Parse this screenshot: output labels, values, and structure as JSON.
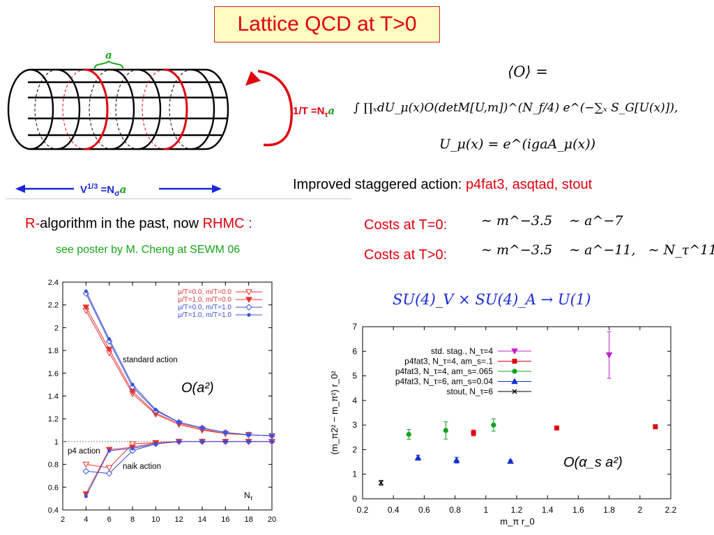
{
  "title": "Lattice QCD at T>0",
  "lattice_figure": {
    "label_a": "a",
    "temp_label": "1/T =N",
    "temp_sub": "τ",
    "temp_a": "a",
    "volume_label": "V",
    "volume_sup": "1/3",
    "volume_eq": "=N",
    "volume_sub": "σ",
    "volume_a": "a"
  },
  "formula": {
    "line1": "⟨O⟩ =",
    "line2": "∫ ∏ₓdU_μ(x)O(detM[U,m])^(N_f/4) e^(−∑ₓ S_G[U(x)]),",
    "line3": "U_μ(x) = e^(igaA_μ(x))"
  },
  "improved_action": {
    "prefix": "Improved staggered action:",
    "actions": "p4fat3, asqtad, stout"
  },
  "algorithm": {
    "r": "R-",
    "text": "algorithm  in the past, now",
    "rhmc": "RHMC :"
  },
  "poster": "see poster by M. Cheng at SEWM 06",
  "costs": {
    "t0_label": "Costs at T=0:",
    "t0_formula": "∼ m^−3.5    ∼ a^−7",
    "tpos_label": "Costs at T>0:",
    "tpos_formula": "∼ m^−3.5    ∼ a^−11,   ∼ N_τ^11"
  },
  "symmetry": "SU(4)_V × SU(4)_A → U(1)",
  "colors": {
    "red": "#e0000e",
    "blue": "#1a27d8",
    "green": "#16a316",
    "magenta": "#c020d0",
    "title_bg": "#fefcc0"
  },
  "chart_data": [
    {
      "type": "line",
      "xlim": [
        2,
        20
      ],
      "ylim": [
        0.4,
        2.4
      ],
      "xticks": [
        2,
        4,
        6,
        8,
        10,
        12,
        14,
        16,
        18,
        20
      ],
      "yticks": [
        0.4,
        0.6,
        0.8,
        1,
        1.2,
        1.4,
        1.6,
        1.8,
        2,
        2.2,
        2.4
      ],
      "xlabel": "N",
      "xlabel_sub": "τ",
      "reference_line": 1,
      "annotations": {
        "standard": "standard action",
        "p4": "p4 action",
        "naik": "naik action",
        "order": "O(a²)"
      },
      "legend": "top-right",
      "x": [
        4,
        6,
        8,
        10,
        12,
        14,
        16,
        18,
        20
      ],
      "series": [
        {
          "name": "μ/T=0.0, m/T=0.0",
          "color": "#e63232",
          "marker": "tri-open",
          "group": "standard",
          "values": [
            2.15,
            1.78,
            1.42,
            1.24,
            1.15,
            1.1,
            1.07,
            1.06,
            1.05
          ]
        },
        {
          "name": "μ/T=1.0, m/T=0.0",
          "color": "#e63232",
          "marker": "tri-filled",
          "group": "standard",
          "values": [
            2.18,
            1.81,
            1.44,
            1.25,
            1.16,
            1.11,
            1.07,
            1.06,
            1.05
          ]
        },
        {
          "name": "μ/T=0.0, m/T=1.0",
          "color": "#3a4fd8",
          "marker": "diamond-open",
          "group": "standard",
          "values": [
            2.3,
            1.88,
            1.48,
            1.27,
            1.17,
            1.12,
            1.08,
            1.06,
            1.05
          ]
        },
        {
          "name": "μ/T=1.0, m/T=1.0",
          "color": "#3a4fd8",
          "marker": "dot",
          "group": "standard",
          "values": [
            2.32,
            1.9,
            1.5,
            1.28,
            1.17,
            1.12,
            1.08,
            1.06,
            1.05
          ]
        },
        {
          "name": "",
          "color": "#e63232",
          "marker": "tri-open",
          "group": "p4",
          "x": [
            4,
            6,
            8,
            10,
            12,
            14,
            16,
            18,
            20
          ],
          "values": [
            0.8,
            0.77,
            0.98,
            0.99,
            1.0,
            1.0,
            1.0,
            1.0,
            1.0
          ]
        },
        {
          "name": "",
          "color": "#3a4fd8",
          "marker": "diamond-open",
          "group": "p4",
          "x": [
            4,
            6,
            8,
            10,
            12,
            14,
            16,
            18,
            20
          ],
          "values": [
            0.74,
            0.72,
            0.92,
            0.98,
            1.0,
            1.0,
            1.0,
            1.0,
            1.0
          ]
        },
        {
          "name": "",
          "color": "#e63232",
          "marker": "tri-filled",
          "group": "naik",
          "x": [
            4,
            6,
            8,
            10,
            12,
            14,
            16,
            18,
            20
          ],
          "values": [
            0.54,
            0.93,
            0.95,
            0.99,
            1.0,
            1.0,
            1.0,
            1.0,
            1.0
          ]
        },
        {
          "name": "",
          "color": "#3a4fd8",
          "marker": "dot",
          "group": "naik",
          "x": [
            4,
            6,
            8,
            10,
            12,
            14,
            16,
            18,
            20
          ],
          "values": [
            0.52,
            0.92,
            0.94,
            0.98,
            1.0,
            1.0,
            1.0,
            1.0,
            1.0
          ]
        }
      ]
    },
    {
      "type": "scatter",
      "xlim": [
        0.2,
        2.2
      ],
      "ylim": [
        0,
        7
      ],
      "xticks": [
        0.2,
        0.4,
        0.6,
        0.8,
        1,
        1.2,
        1.4,
        1.6,
        1.8,
        2,
        2.2
      ],
      "yticks": [
        0,
        1,
        2,
        3,
        4,
        5,
        6,
        7
      ],
      "xlabel": "m_π r_0",
      "ylabel": "(m_π2² − m_π²) r_0²",
      "annotation": "O(α_s a²)",
      "legend": "top-right",
      "series": [
        {
          "name": "std. stag., N_τ=4",
          "color": "#c020d0",
          "marker": "tri-down",
          "points": [
            [
              1.8,
              5.85,
              0.95
            ]
          ]
        },
        {
          "name": "p4fat3, N_τ=4,     am_s=.1",
          "color": "#e00010",
          "marker": "square",
          "points": [
            [
              0.92,
              2.68,
              0.12
            ],
            [
              1.46,
              2.88,
              0.08
            ],
            [
              2.1,
              2.93,
              0.08
            ]
          ]
        },
        {
          "name": "p4fat3, N_τ=4, am_s=.065",
          "color": "#10a020",
          "marker": "circle",
          "points": [
            [
              0.5,
              2.62,
              0.2
            ],
            [
              0.74,
              2.78,
              0.35
            ],
            [
              1.05,
              3.0,
              0.25
            ]
          ]
        },
        {
          "name": "p4fat3, N_τ=6, am_s=0.04",
          "color": "#1030d0",
          "marker": "tri-up",
          "points": [
            [
              0.56,
              1.67,
              0.1
            ],
            [
              0.81,
              1.57,
              0.12
            ],
            [
              1.16,
              1.53,
              0.05
            ]
          ]
        },
        {
          "name": "stout, N_τ=6",
          "color": "#000000",
          "marker": "cross",
          "points": [
            [
              0.32,
              0.65,
              0.1
            ]
          ]
        }
      ]
    }
  ]
}
